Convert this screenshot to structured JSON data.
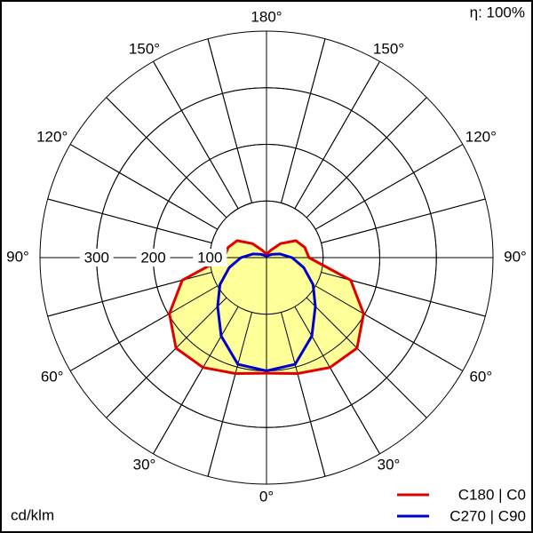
{
  "chart_data": {
    "type": "polar",
    "corner_note": "η: 100%",
    "unit_label": "cd/klm",
    "angles": [
      0,
      15,
      30,
      45,
      60,
      75,
      90,
      105,
      120,
      135,
      150,
      165,
      180
    ],
    "series": [
      {
        "name": "C180 | C0",
        "color": "#e00000",
        "fill": "#ffff99",
        "values": [
          204,
          212,
          224,
          226,
          198,
          154,
          75,
          70,
          60,
          35,
          15,
          8,
          8
        ]
      },
      {
        "name": "C270 | C90",
        "color": "#0000cc",
        "values": [
          200,
          195,
          160,
          122,
          95,
          68,
          45,
          25,
          12,
          6,
          4,
          3,
          3
        ]
      }
    ],
    "rlim": [
      0,
      400
    ],
    "rticks": [
      100,
      200,
      300
    ],
    "thetaticks": [
      {
        "value": 0,
        "label": "0°"
      },
      {
        "value": 30,
        "label": "30°"
      },
      {
        "value": 60,
        "label": "60°"
      },
      {
        "value": 90,
        "label": "90°"
      },
      {
        "value": 120,
        "label": "120°"
      },
      {
        "value": 150,
        "label": "150°"
      },
      {
        "value": 180,
        "label": "180°"
      }
    ]
  }
}
